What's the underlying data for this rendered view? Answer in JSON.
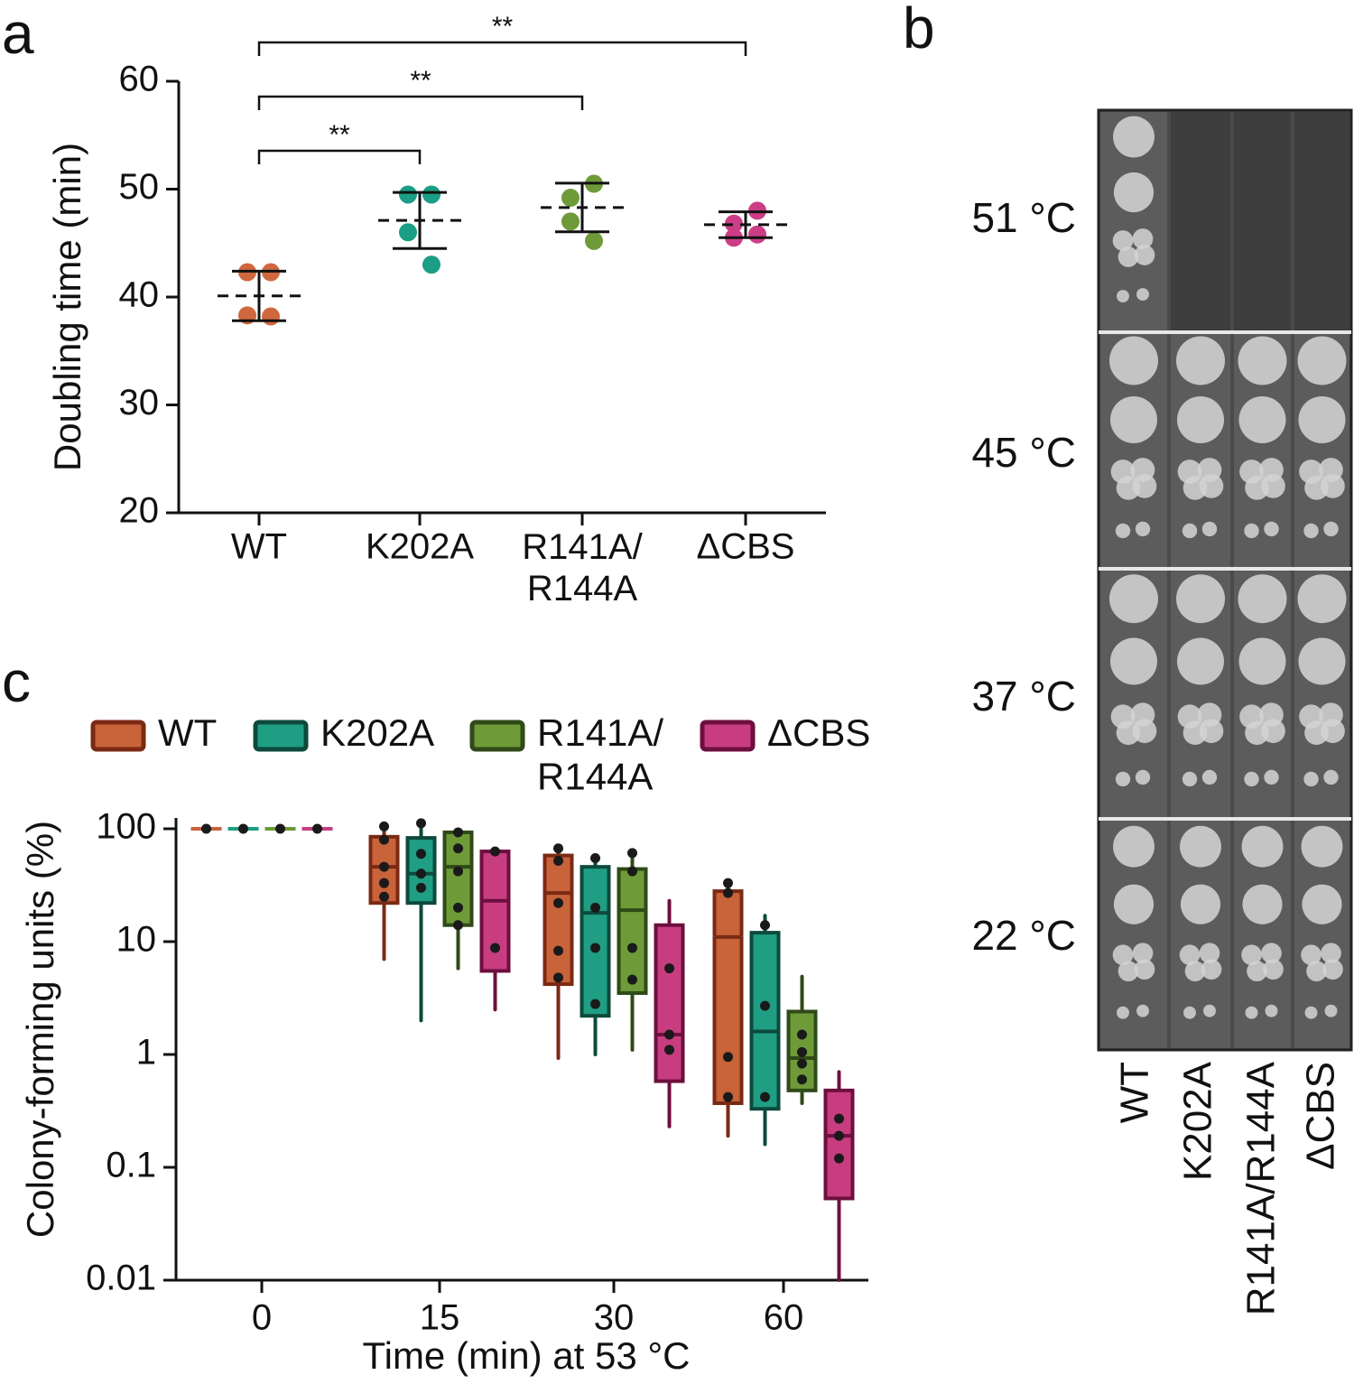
{
  "chart_data": [
    {
      "type": "dotplot",
      "label": "a",
      "ylabel": "Doubling time (min)",
      "categories": [
        "WT",
        "K202A",
        "R141A/\nR144A",
        "ΔCBS"
      ],
      "ylim": [
        20,
        60
      ],
      "yticks": [
        20,
        30,
        40,
        50,
        60
      ],
      "series": [
        {
          "color": "#d0683f",
          "values": [
            42.3,
            42.3,
            38.3,
            38.2
          ],
          "mean": 40.1,
          "sd": 2.3
        },
        {
          "color": "#1a9e85",
          "values": [
            49.5,
            49.5,
            46.0,
            43.0
          ],
          "mean": 47.1,
          "sd": 2.6
        },
        {
          "color": "#6f9a3a",
          "values": [
            49.2,
            50.5,
            47.0,
            45.2
          ],
          "mean": 48.3,
          "sd": 2.25
        },
        {
          "color": "#cc3d86",
          "values": [
            46.8,
            48.0,
            45.5,
            45.8
          ],
          "mean": 46.7,
          "sd": 1.2
        }
      ],
      "significance": [
        {
          "from": 0,
          "to": 1,
          "label": "**"
        },
        {
          "from": 0,
          "to": 2,
          "label": "**"
        },
        {
          "from": 0,
          "to": 3,
          "label": "**"
        }
      ]
    },
    {
      "type": "box",
      "label": "c",
      "ylabel": "Colony-forming units (%)",
      "xlabel": "Time (min) at 53 °C",
      "categories": [
        "0",
        "15",
        "30",
        "60"
      ],
      "log": true,
      "ylim": [
        0.01,
        100
      ],
      "yticks": [
        100,
        10,
        1,
        0.1,
        0.01
      ],
      "legend": "top",
      "series": [
        {
          "name": "WT",
          "color": "#c8633a",
          "edge_color": "#7a2a14",
          "boxes": [
            {
              "min": 100,
              "q1": 100,
              "median": 100,
              "q3": 100,
              "max": 100,
              "points": [
                100
              ]
            },
            {
              "min": 7.0,
              "q1": 22,
              "median": 46,
              "q3": 85,
              "max": 105,
              "points": [
                105,
                80,
                46,
                33,
                25
              ]
            },
            {
              "min": 0.93,
              "q1": 4.2,
              "median": 27,
              "q3": 58,
              "max": 67,
              "points": [
                67,
                52,
                22,
                8.3,
                4.8
              ]
            },
            {
              "min": 0.19,
              "q1": 0.37,
              "median": 11,
              "q3": 28,
              "max": 33,
              "points": [
                33,
                27,
                0.95,
                0.42
              ]
            }
          ]
        },
        {
          "name": "K202A",
          "color": "#1f9e84",
          "edge_color": "#0d4a3c",
          "boxes": [
            {
              "min": 100,
              "q1": 100,
              "median": 100,
              "q3": 100,
              "max": 100,
              "points": [
                100
              ]
            },
            {
              "min": 2.0,
              "q1": 22,
              "median": 40,
              "q3": 83,
              "max": 115,
              "points": [
                112,
                60,
                40,
                30
              ]
            },
            {
              "min": 1.0,
              "q1": 2.2,
              "median": 18,
              "q3": 46,
              "max": 55,
              "points": [
                55,
                20,
                8.8,
                2.8
              ]
            },
            {
              "min": 0.16,
              "q1": 0.33,
              "median": 1.6,
              "q3": 12,
              "max": 17,
              "points": [
                14,
                2.7,
                0.42
              ]
            }
          ]
        },
        {
          "name": "R141A/\nR144A",
          "color": "#6e9a38",
          "edge_color": "#2f4a18",
          "boxes": [
            {
              "min": 100,
              "q1": 100,
              "median": 100,
              "q3": 100,
              "max": 100,
              "points": [
                100
              ]
            },
            {
              "min": 5.8,
              "q1": 14,
              "median": 46,
              "q3": 93,
              "max": 96,
              "points": [
                93,
                67,
                42,
                20,
                14
              ]
            },
            {
              "min": 1.1,
              "q1": 3.5,
              "median": 19,
              "q3": 44,
              "max": 61,
              "points": [
                61,
                42,
                8.8,
                4.6
              ]
            },
            {
              "min": 0.37,
              "q1": 0.48,
              "median": 0.93,
              "q3": 2.4,
              "max": 4.9,
              "points": [
                1.5,
                1.05,
                0.83,
                0.6
              ]
            }
          ]
        },
        {
          "name": "ΔCBS",
          "color": "#c83d80",
          "edge_color": "#6d0f3e",
          "boxes": [
            {
              "min": 100,
              "q1": 100,
              "median": 100,
              "q3": 100,
              "max": 100,
              "points": [
                100
              ]
            },
            {
              "min": 2.5,
              "q1": 5.5,
              "median": 23,
              "q3": 63,
              "max": 63,
              "points": [
                63,
                8.8
              ]
            },
            {
              "min": 0.23,
              "q1": 0.58,
              "median": 1.5,
              "q3": 14,
              "max": 23,
              "points": [
                5.8,
                1.5,
                1.1
              ]
            },
            {
              "min": 0.01,
              "q1": 0.053,
              "median": 0.19,
              "q3": 0.48,
              "max": 0.7,
              "points": [
                0.27,
                0.19,
                0.12
              ]
            }
          ]
        }
      ]
    }
  ],
  "spot_assay": {
    "label": "b",
    "temperatures": [
      "51 °C",
      "45 °C",
      "37 °C",
      "22 °C"
    ],
    "strains": [
      "WT",
      "K202A",
      "R141A/R144A",
      "ΔCBS"
    ]
  }
}
